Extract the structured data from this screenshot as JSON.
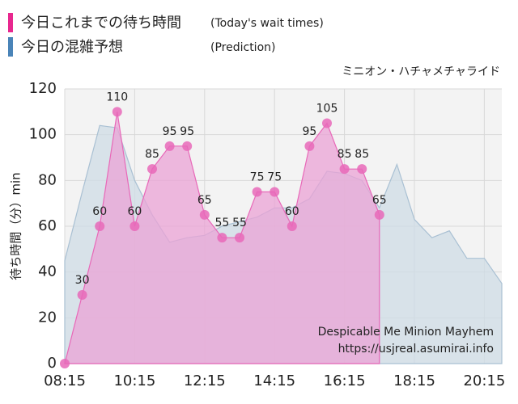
{
  "chart_data": {
    "type": "area",
    "legend_title": "今日これまでの待ち時間",
    "legend_note": "(Today's wait times)",
    "legend_title_2": "今日の混雑予想",
    "legend_note_2": "(Prediction)",
    "subtitle": "ミニオン・ハチャメチャライド",
    "ylabel": "待ち時間（分）min",
    "annotation": "Despicable Me Minion Mayhem",
    "source": "https://usjreal.asumirai.info",
    "x": [
      "08:15",
      "08:45",
      "09:15",
      "09:45",
      "10:15",
      "10:45",
      "11:15",
      "11:45",
      "12:15",
      "12:45",
      "13:15",
      "13:45",
      "14:15",
      "14:45",
      "15:15",
      "15:45",
      "16:15",
      "16:45",
      "17:15",
      "17:45",
      "18:15",
      "18:45",
      "19:15",
      "19:45",
      "20:15",
      "20:45"
    ],
    "series": [
      {
        "name": "Today",
        "color": "#e868b8",
        "fill": "#eba3d6",
        "values": [
          0,
          30,
          60,
          110,
          60,
          85,
          95,
          95,
          65,
          55,
          55,
          75,
          75,
          60,
          95,
          105,
          85,
          85,
          65,
          null,
          null,
          null,
          null,
          null,
          null,
          null
        ]
      },
      {
        "name": "Prediction",
        "color": "#a9c0d3",
        "fill": "#cfdce6",
        "values": [
          45,
          75,
          104,
          103,
          80,
          65,
          53,
          55,
          56,
          60,
          62,
          64,
          68,
          68,
          72,
          84,
          83,
          80,
          68,
          87,
          63,
          55,
          58,
          46,
          46,
          35
        ]
      }
    ],
    "xlim": [
      "08:15",
      "20:45"
    ],
    "xticks": [
      "08:15",
      "10:15",
      "12:15",
      "14:15",
      "16:15",
      "18:15",
      "20:15"
    ],
    "ylim": [
      0,
      120
    ],
    "yticks": [
      0,
      20,
      40,
      60,
      80,
      100,
      120
    ],
    "grid": true
  }
}
